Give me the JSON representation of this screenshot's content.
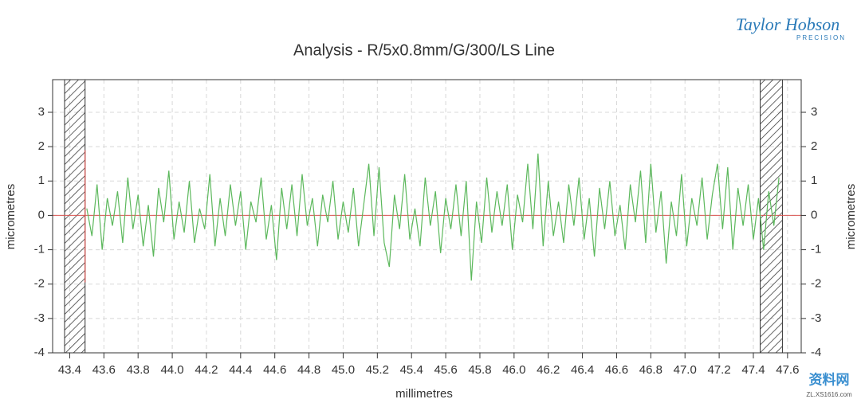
{
  "chart_data": {
    "type": "line",
    "title": "Analysis - R/5x0.8mm/G/300/LS Line",
    "x_label": "millimetres",
    "y_label": "micrometres",
    "y2_label": "micrometres",
    "logo": {
      "name": "Taylor Hobson",
      "tagline": "PRECISION"
    },
    "watermark": {
      "name": "资料网",
      "url": "ZL.XS1616.com"
    },
    "xlim": [
      43.3,
      47.68
    ],
    "ylim": [
      -4,
      3.95
    ],
    "y2lim": [
      -4,
      3.95
    ],
    "xticks": [
      43.4,
      43.6,
      43.8,
      44.0,
      44.2,
      44.4,
      44.6,
      44.8,
      45.0,
      45.2,
      45.4,
      45.6,
      45.8,
      46.0,
      46.2,
      46.4,
      46.6,
      46.8,
      47.0,
      47.2,
      47.4,
      47.6
    ],
    "xtick_labels": [
      "43.4",
      "43.6",
      "43.8",
      "44.0",
      "44.2",
      "44.4",
      "44.6",
      "44.8",
      "45.0",
      "45.2",
      "45.4",
      "45.6",
      "45.8",
      "46.0",
      "46.2",
      "46.4",
      "46.6",
      "46.8",
      "47.0",
      "47.2",
      "47.4",
      "47.6"
    ],
    "yticks": [
      3,
      2,
      1,
      0,
      -1,
      -2,
      -3,
      -4
    ],
    "y2ticks": [
      3,
      2,
      1,
      0,
      -1,
      -2,
      -3,
      -4
    ],
    "grid": true,
    "reference_line": {
      "y": 0,
      "color": "#d9534f"
    },
    "cursor": {
      "x": 43.49,
      "y": [
        -1.95,
        1.9
      ],
      "color": "#d9534f"
    },
    "exclusion_zones": [
      [
        43.37,
        43.49
      ],
      [
        47.44,
        47.57
      ]
    ],
    "x": [
      43.5,
      43.53,
      43.56,
      43.59,
      43.62,
      43.65,
      43.68,
      43.71,
      43.74,
      43.77,
      43.8,
      43.83,
      43.86,
      43.89,
      43.92,
      43.95,
      43.98,
      44.01,
      44.04,
      44.07,
      44.1,
      44.13,
      44.16,
      44.19,
      44.22,
      44.25,
      44.28,
      44.31,
      44.34,
      44.37,
      44.4,
      44.43,
      44.46,
      44.49,
      44.52,
      44.55,
      44.58,
      44.61,
      44.64,
      44.67,
      44.7,
      44.73,
      44.76,
      44.79,
      44.82,
      44.85,
      44.88,
      44.91,
      44.94,
      44.97,
      45.0,
      45.03,
      45.06,
      45.09,
      45.12,
      45.15,
      45.18,
      45.21,
      45.24,
      45.27,
      45.3,
      45.33,
      45.36,
      45.39,
      45.42,
      45.45,
      45.48,
      45.51,
      45.54,
      45.57,
      45.6,
      45.63,
      45.66,
      45.69,
      45.72,
      45.75,
      45.78,
      45.81,
      45.84,
      45.87,
      45.9,
      45.93,
      45.96,
      45.99,
      46.02,
      46.05,
      46.08,
      46.11,
      46.14,
      46.17,
      46.2,
      46.23,
      46.26,
      46.29,
      46.32,
      46.35,
      46.38,
      46.41,
      46.44,
      46.47,
      46.5,
      46.53,
      46.56,
      46.59,
      46.62,
      46.65,
      46.68,
      46.71,
      46.74,
      46.77,
      46.8,
      46.83,
      46.86,
      46.89,
      46.92,
      46.95,
      46.98,
      47.01,
      47.04,
      47.07,
      47.1,
      47.13,
      47.16,
      47.19,
      47.22,
      47.25,
      47.28,
      47.31,
      47.34,
      47.37,
      47.4,
      47.43,
      47.46,
      47.49,
      47.52,
      47.55
    ],
    "series": [
      {
        "color": "#5cb85c",
        "values": [
          0.2,
          -0.6,
          0.9,
          -1.0,
          0.5,
          -0.3,
          0.7,
          -0.8,
          1.1,
          -0.4,
          0.6,
          -0.9,
          0.3,
          -1.2,
          0.8,
          -0.2,
          1.3,
          -0.7,
          0.4,
          -0.5,
          1.0,
          -0.8,
          0.2,
          -0.4,
          1.2,
          -0.9,
          0.5,
          -0.6,
          0.9,
          -0.3,
          0.7,
          -1.0,
          0.4,
          -0.2,
          1.1,
          -0.7,
          0.3,
          -1.3,
          0.8,
          -0.4,
          0.9,
          -0.6,
          1.2,
          -0.3,
          0.5,
          -0.9,
          0.6,
          -0.2,
          1.0,
          -0.7,
          0.4,
          -0.5,
          0.8,
          -0.9,
          0.3,
          1.5,
          -0.6,
          1.4,
          -0.8,
          -1.5,
          0.6,
          -0.4,
          1.2,
          -0.7,
          0.2,
          -0.9,
          1.1,
          -0.3,
          0.7,
          -1.1,
          0.5,
          -0.4,
          0.9,
          -0.6,
          1.0,
          -1.9,
          0.4,
          -0.8,
          1.1,
          -0.5,
          0.7,
          -0.3,
          0.9,
          -1.0,
          0.6,
          -0.2,
          1.5,
          -0.4,
          1.8,
          -0.9,
          1.0,
          -0.6,
          0.4,
          -0.8,
          0.9,
          -0.3,
          1.1,
          -0.7,
          0.5,
          -1.2,
          0.8,
          -0.4,
          1.0,
          -0.6,
          0.3,
          -1.0,
          0.9,
          -0.2,
          1.3,
          -0.8,
          1.5,
          -0.5,
          0.7,
          -1.4,
          0.4,
          -0.6,
          1.2,
          -0.9,
          0.5,
          -0.3,
          1.1,
          -0.7,
          0.6,
          1.5,
          -0.4,
          1.4,
          -1.0,
          0.8,
          -0.3,
          0.9,
          -0.7,
          0.5,
          -1.0,
          0.7,
          -0.3,
          1.1
        ]
      }
    ]
  }
}
